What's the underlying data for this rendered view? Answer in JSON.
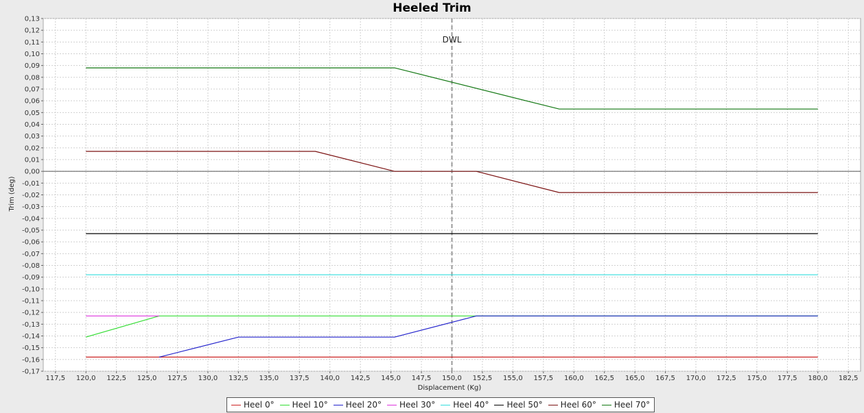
{
  "chart_data": {
    "type": "line",
    "title": "Heeled Trim",
    "xlabel": "Displacement (Kg)",
    "ylabel": "Trim (deg)",
    "xlim": [
      116.5,
      183.5
    ],
    "ylim": [
      -0.17,
      0.13
    ],
    "x_ticks": [
      "117,5",
      "120,0",
      "122,5",
      "125,0",
      "127,5",
      "130,0",
      "132,5",
      "135,0",
      "137,5",
      "140,0",
      "142,5",
      "145,0",
      "147,5",
      "150,0",
      "152,5",
      "155,0",
      "157,5",
      "160,0",
      "162,5",
      "165,0",
      "167,5",
      "170,0",
      "172,5",
      "175,0",
      "177,5",
      "180,0",
      "182,5"
    ],
    "y_ticks": [
      "0,13",
      "0,12",
      "0,11",
      "0,10",
      "0,09",
      "0,08",
      "0,07",
      "0,06",
      "0,05",
      "0,04",
      "0,03",
      "0,02",
      "0,01",
      "0,00",
      "-0,01",
      "-0,02",
      "-0,03",
      "-0,04",
      "-0,05",
      "-0,06",
      "-0,07",
      "-0,08",
      "-0,09",
      "-0,10",
      "-0,11",
      "-0,12",
      "-0,13",
      "-0,14",
      "-0,15",
      "-0,16",
      "-0,17"
    ],
    "grid": true,
    "legend_position": "bottom",
    "annotations": [
      {
        "text": "DWL",
        "x": 150.0
      }
    ],
    "series": [
      {
        "name": "Heel 0°",
        "color": "#cc2222",
        "points": [
          [
            120.0,
            -0.158
          ],
          [
            180.0,
            -0.158
          ]
        ]
      },
      {
        "name": "Heel 10°",
        "color": "#33dd33",
        "points": [
          [
            120.0,
            -0.141
          ],
          [
            126.0,
            -0.123
          ],
          [
            180.0,
            -0.123
          ]
        ]
      },
      {
        "name": "Heel 20°",
        "color": "#2222cc",
        "points": [
          [
            126.0,
            -0.158
          ],
          [
            132.5,
            -0.141
          ],
          [
            145.3,
            -0.141
          ],
          [
            152.0,
            -0.123
          ],
          [
            180.0,
            -0.123
          ]
        ]
      },
      {
        "name": "Heel 30°",
        "color": "#dd33dd",
        "points": [
          [
            120.0,
            -0.123
          ],
          [
            126.0,
            -0.123
          ]
        ]
      },
      {
        "name": "Heel 40°",
        "color": "#33dddd",
        "points": [
          [
            120.0,
            -0.088
          ],
          [
            180.0,
            -0.088
          ]
        ]
      },
      {
        "name": "Heel 50°",
        "color": "#000000",
        "points": [
          [
            120.0,
            -0.053
          ],
          [
            180.0,
            -0.053
          ]
        ]
      },
      {
        "name": "Heel 60°",
        "color": "#7a1010",
        "points": [
          [
            120.0,
            0.017
          ],
          [
            138.8,
            0.017
          ],
          [
            145.3,
            0.0
          ],
          [
            152.0,
            0.0
          ],
          [
            158.8,
            -0.018
          ],
          [
            180.0,
            -0.018
          ]
        ]
      },
      {
        "name": "Heel 70°",
        "color": "#117711",
        "points": [
          [
            120.0,
            0.088
          ],
          [
            145.3,
            0.088
          ],
          [
            158.8,
            0.053
          ],
          [
            180.0,
            0.053
          ]
        ]
      }
    ]
  }
}
